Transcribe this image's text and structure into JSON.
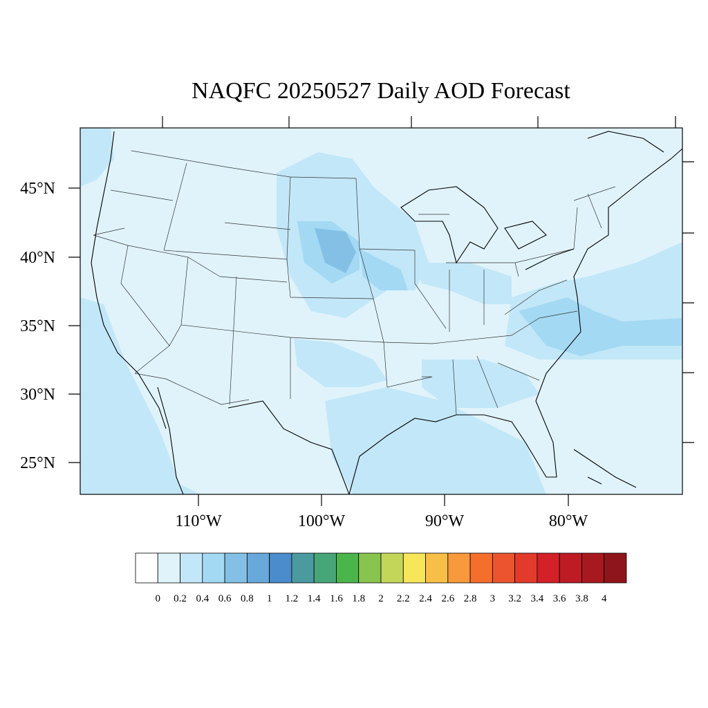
{
  "title": "NAQFC 20250527 Daily AOD Forecast",
  "map": {
    "lat_labels": [
      "45°N",
      "40°N",
      "35°N",
      "30°N",
      "25°N"
    ],
    "lon_labels": [
      "110°W",
      "100°W",
      "90°W",
      "80°W"
    ]
  },
  "colorbar": {
    "colors": [
      "#ffffff",
      "#e0f3fb",
      "#c2e7f8",
      "#a3d9f3",
      "#84c0e6",
      "#68a8db",
      "#4a8ccc",
      "#4a9aa0",
      "#47a678",
      "#4ab54a",
      "#88c54e",
      "#c4d65a",
      "#f7e65a",
      "#f8bf48",
      "#f7993c",
      "#f46f2c",
      "#ec5430",
      "#e23b2b",
      "#d42028",
      "#be1b24",
      "#a8191f",
      "#8e161a"
    ],
    "labels": [
      0,
      0.2,
      0.4,
      0.6,
      0.8,
      1,
      1.2,
      1.4,
      1.6,
      1.8,
      2,
      2.2,
      2.4,
      2.6,
      2.8,
      3,
      3.2,
      3.4,
      3.6,
      3.8,
      4
    ]
  }
}
